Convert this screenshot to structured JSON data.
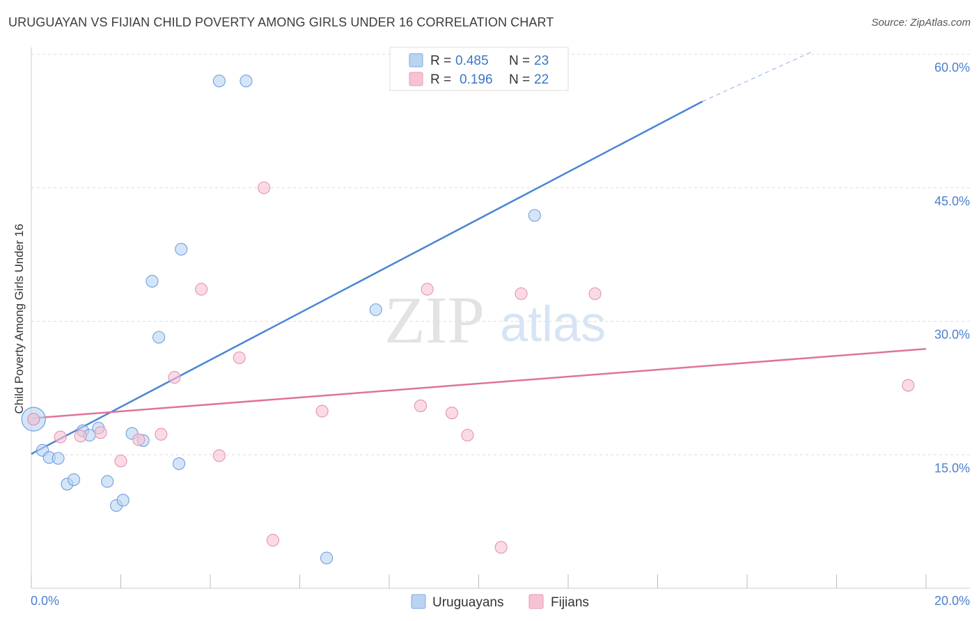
{
  "title": "URUGUAYAN VS FIJIAN CHILD POVERTY AMONG GIRLS UNDER 16 CORRELATION CHART",
  "source": "Source: ZipAtlas.com",
  "watermark": {
    "zip": "ZIP",
    "atlas": "atlas"
  },
  "chart_data": {
    "type": "scatter",
    "xlabel": "",
    "ylabel": "Child Poverty Among Girls Under 16",
    "xlim": [
      0,
      20
    ],
    "ylim": [
      0,
      60
    ],
    "x_tick_labels": [
      "0.0%",
      "20.0%"
    ],
    "y_ticks": [
      15,
      30,
      45,
      60
    ],
    "y_tick_labels": [
      "15.0%",
      "30.0%",
      "45.0%",
      "60.0%"
    ],
    "colors": {
      "uruguayans": "#4a84d4",
      "fijians": "#e0739a",
      "uruguayans_fill": "#b9d3f3",
      "fijians_fill": "#f7c3d3"
    },
    "legend": [
      {
        "r_label": "R =",
        "r_value": "0.485",
        "n_label": "N =",
        "n_value": "23"
      },
      {
        "r_label": "R =",
        "r_value": "0.196",
        "n_label": "N =",
        "n_value": "22"
      }
    ],
    "series": [
      {
        "name": "Uruguayans",
        "points": [
          [
            0.05,
            19.0
          ],
          [
            0.25,
            15.5
          ],
          [
            0.4,
            14.7
          ],
          [
            0.6,
            14.6
          ],
          [
            0.8,
            11.7
          ],
          [
            0.95,
            12.2
          ],
          [
            1.15,
            17.7
          ],
          [
            1.3,
            17.2
          ],
          [
            1.5,
            18.0
          ],
          [
            1.7,
            12.0
          ],
          [
            1.9,
            9.3
          ],
          [
            2.05,
            9.9
          ],
          [
            2.25,
            17.4
          ],
          [
            2.5,
            16.6
          ],
          [
            2.7,
            34.5
          ],
          [
            2.85,
            28.2
          ],
          [
            3.3,
            14.0
          ],
          [
            3.35,
            38.1
          ],
          [
            4.2,
            57.0
          ],
          [
            4.8,
            57.0
          ],
          [
            6.6,
            3.4
          ],
          [
            7.7,
            31.3
          ],
          [
            11.25,
            41.9
          ]
        ],
        "trend": {
          "x0": 0,
          "y0": 15.1,
          "x1": 15.0,
          "y1": 54.7,
          "dash_x1": 17.5,
          "dash_y1": 60.4
        }
      },
      {
        "name": "Fijians",
        "points": [
          [
            0.05,
            19.0
          ],
          [
            0.65,
            17.0
          ],
          [
            1.1,
            17.1
          ],
          [
            1.55,
            17.5
          ],
          [
            2.0,
            14.3
          ],
          [
            2.4,
            16.7
          ],
          [
            2.9,
            17.3
          ],
          [
            3.2,
            23.7
          ],
          [
            3.8,
            33.6
          ],
          [
            4.2,
            14.9
          ],
          [
            4.65,
            25.9
          ],
          [
            5.2,
            45.0
          ],
          [
            5.4,
            5.4
          ],
          [
            6.5,
            19.9
          ],
          [
            8.7,
            20.5
          ],
          [
            8.85,
            33.6
          ],
          [
            9.4,
            19.7
          ],
          [
            9.75,
            17.2
          ],
          [
            10.5,
            4.6
          ],
          [
            10.95,
            33.1
          ],
          [
            12.6,
            33.1
          ],
          [
            19.6,
            22.8
          ]
        ],
        "trend": {
          "x0": 0,
          "y0": 19.1,
          "x1": 20.0,
          "y1": 26.9
        }
      }
    ]
  }
}
